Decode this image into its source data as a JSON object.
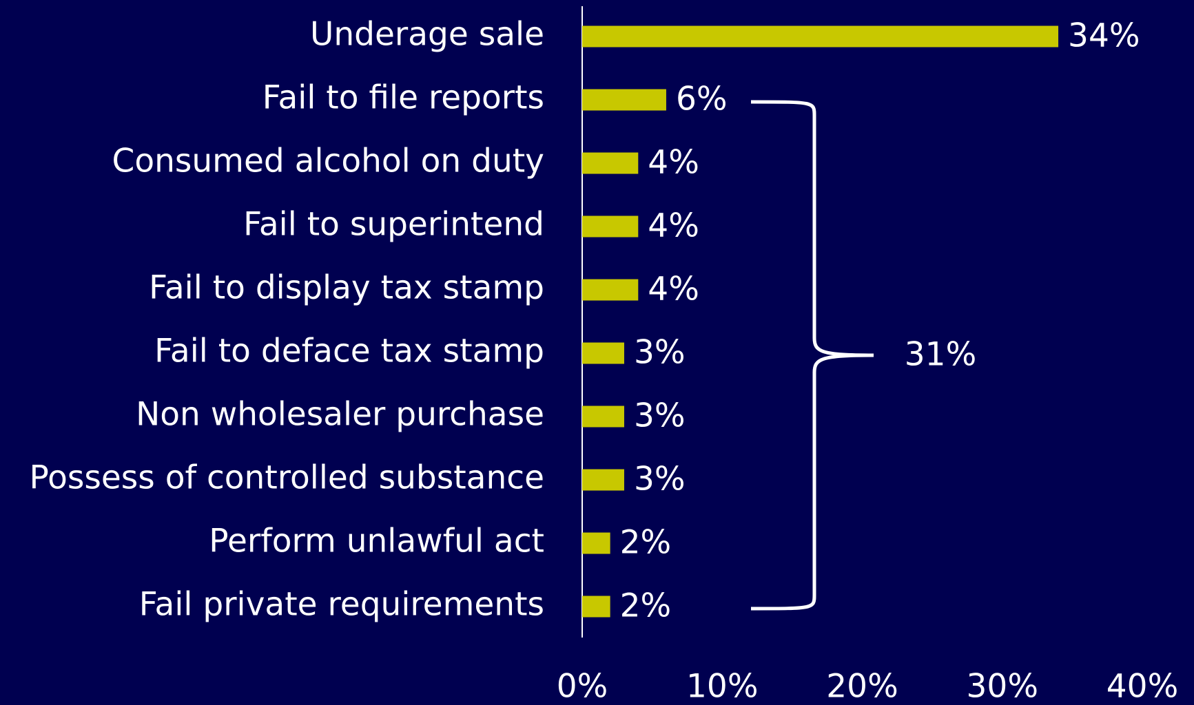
{
  "chart_data": {
    "type": "bar",
    "orientation": "horizontal",
    "categories": [
      "Underage sale",
      "Fail to file reports",
      "Consumed alcohol on duty",
      "Fail to superintend",
      "Fail to display tax stamp",
      "Fail to deface tax stamp",
      "Non wholesaler purchase",
      "Possess of controlled substance",
      "Perform unlawful act",
      "Fail private requirements"
    ],
    "values": [
      34,
      6,
      4,
      4,
      4,
      3,
      3,
      3,
      2,
      2
    ],
    "value_labels": [
      "34%",
      "6%",
      "4%",
      "4%",
      "4%",
      "3%",
      "3%",
      "3%",
      "2%",
      "2%"
    ],
    "color": "#c8c800",
    "xlim": [
      0,
      40
    ],
    "xticks": [
      {
        "value": 0,
        "label": "0%"
      },
      {
        "value": 10,
        "label": "10%"
      },
      {
        "value": 20,
        "label": "20%"
      },
      {
        "value": 30,
        "label": "30%"
      },
      {
        "value": 40,
        "label": "40%"
      }
    ],
    "grid": false,
    "annotation": {
      "text": "31%"
    }
  }
}
